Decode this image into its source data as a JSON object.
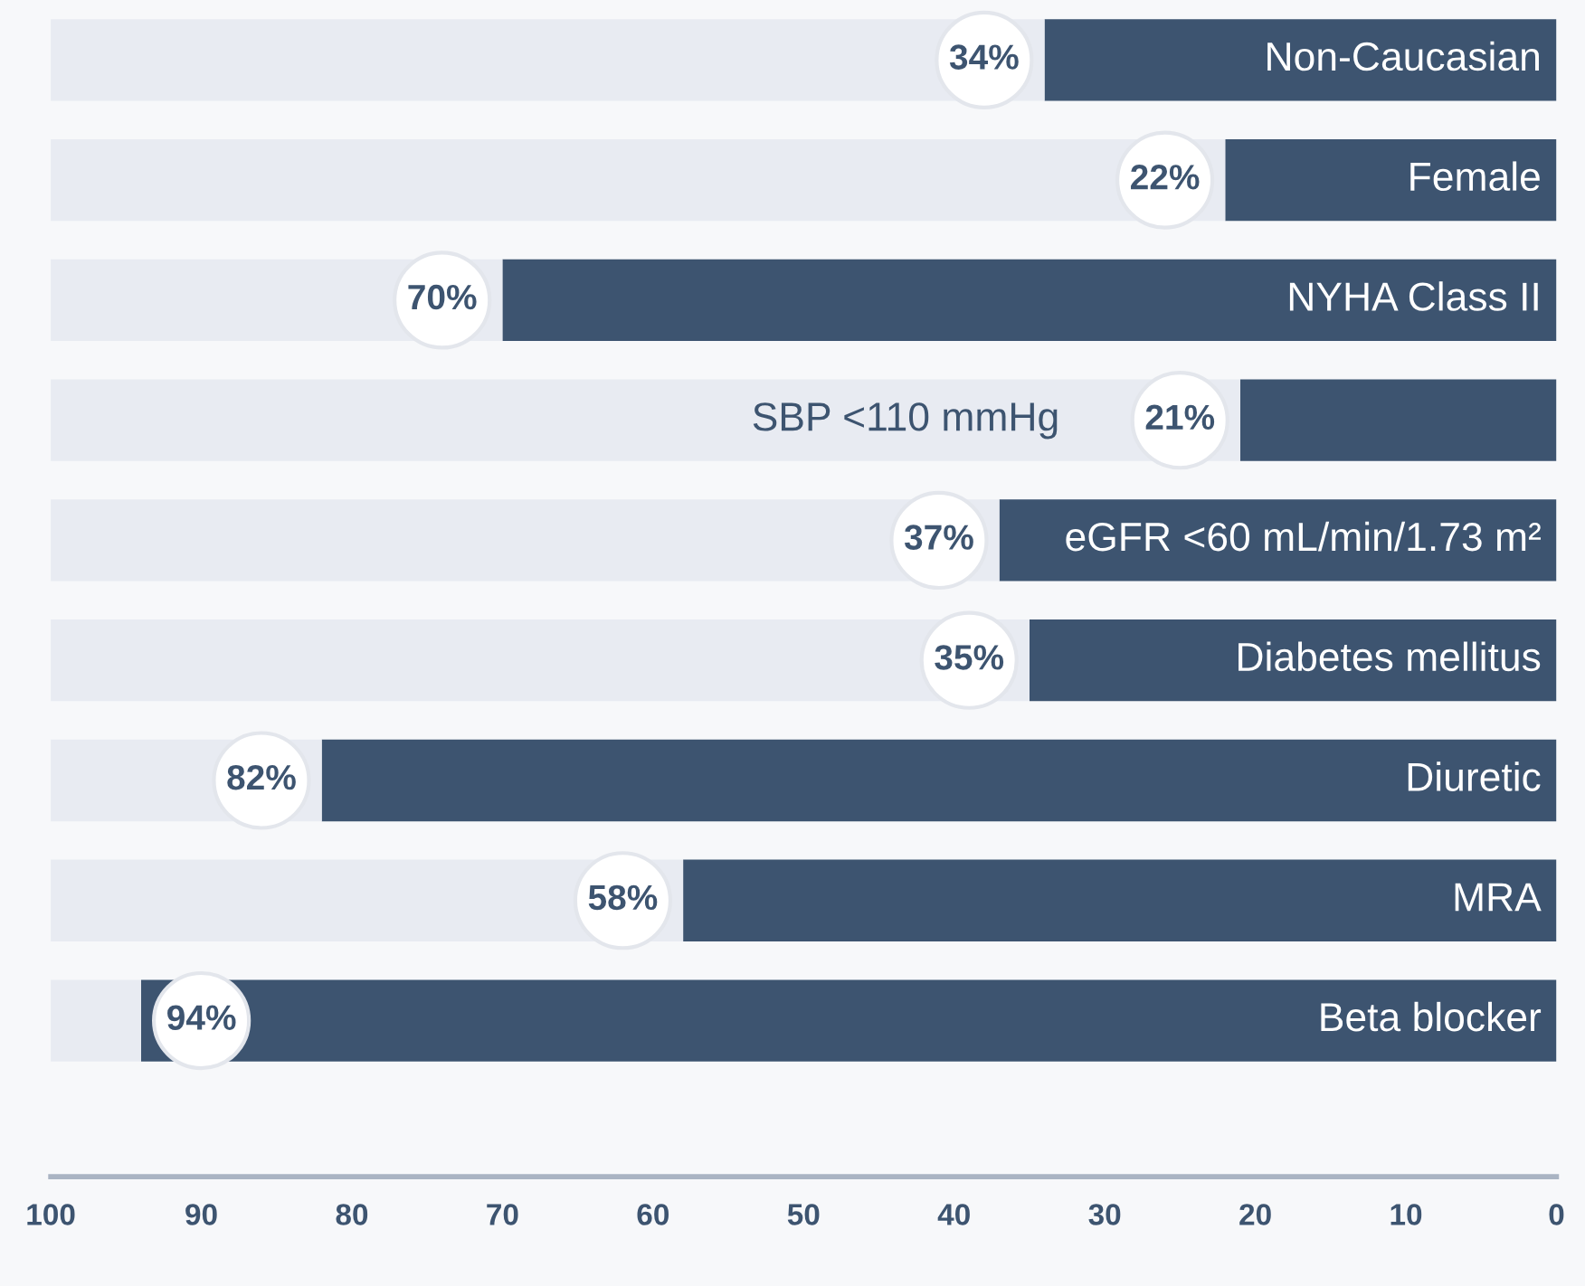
{
  "chart_data": {
    "type": "bar",
    "orientation": "horizontal",
    "stacked": true,
    "categories": [
      "Non-Caucasian",
      "Female",
      "NYHA Class II",
      "SBP <110 mmHg",
      "eGFR <60 mL/min/1.73 m²",
      "Diabetes mellitus",
      "Diuretic",
      "MRA",
      "Beta blocker"
    ],
    "series": [
      {
        "color": "#3d5470",
        "values": [
          34,
          22,
          70,
          21,
          37,
          35,
          82,
          58,
          94
        ],
        "value_labels": [
          "34%",
          "22%",
          "70%",
          "21%",
          "37%",
          "35%",
          "82%",
          "58%",
          "94%"
        ]
      },
      {
        "color": "#e8ebf2",
        "values": [
          66,
          78,
          30,
          79,
          63,
          65,
          18,
          42,
          6
        ]
      }
    ],
    "xlim": [
      100,
      0
    ],
    "xticks": [
      100,
      90,
      80,
      70,
      60,
      50,
      40,
      30,
      20,
      10,
      0
    ],
    "tick_labels": "x",
    "grid": false,
    "legend": false
  }
}
